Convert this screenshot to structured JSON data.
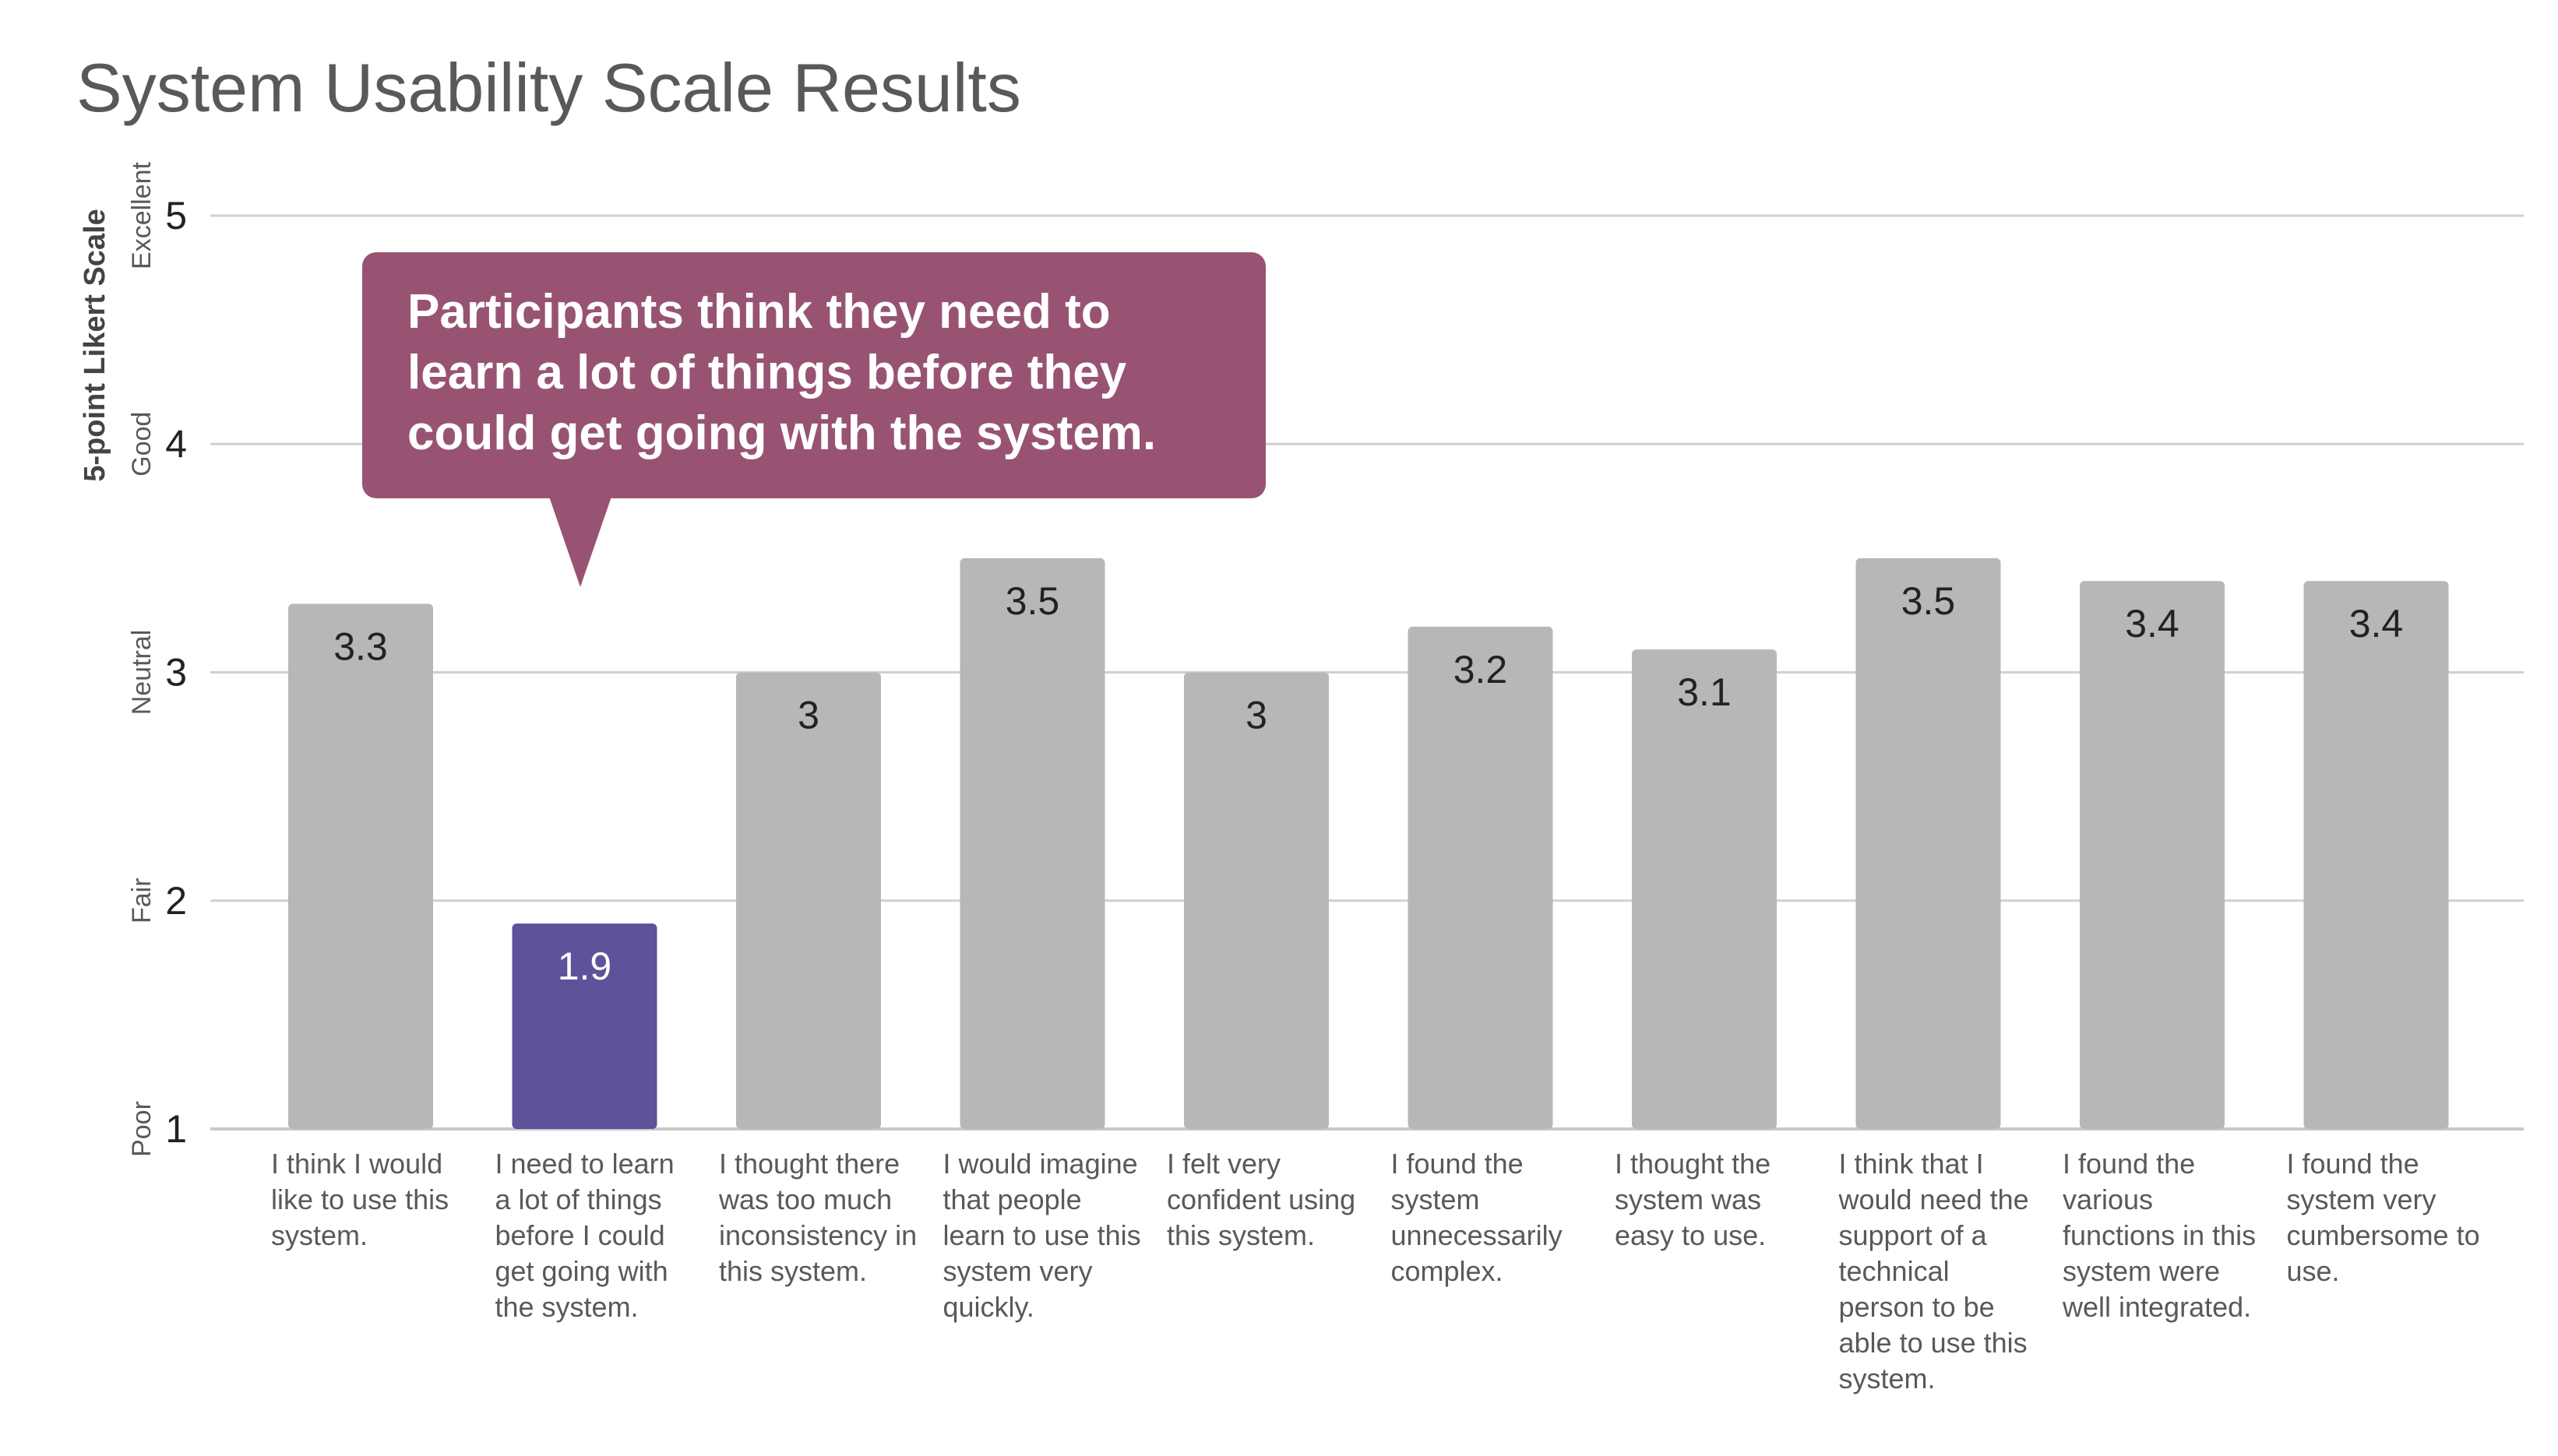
{
  "page": {
    "title": "System Usability Scale Results"
  },
  "chart_data": {
    "type": "bar",
    "title": "System Usability Scale Results",
    "xlabel": "",
    "ylabel": "5-point Likert Scale",
    "ylim": [
      1,
      5
    ],
    "yticks": [
      1,
      2,
      3,
      4,
      5
    ],
    "ytick_text_labels": [
      "Poor",
      "Fair",
      "Neutral",
      "Good",
      "Excellent"
    ],
    "grid": true,
    "categories": [
      "I think I would like to use this system.",
      "I need to learn a lot of things before I could get going with the system.",
      "I thought there was too much inconsistency in this system.",
      "I would imagine that people learn to use this system very quickly.",
      "I felt very confident using this system.",
      "I found the system unnecessarily complex.",
      "I thought the system was easy to use.",
      "I think that I would need the support of a technical person to be able to use this system.",
      "I found the various functions in this system were well integrated.",
      "I found the system very cumbersome to use."
    ],
    "values": [
      3.3,
      1.9,
      3,
      3.5,
      3,
      3.2,
      3.1,
      3.5,
      3.4,
      3.4
    ],
    "data_labels": [
      "3.3",
      "1.9",
      "3",
      "3.5",
      "3",
      "3.2",
      "3.1",
      "3.5",
      "3.4",
      "3.4"
    ],
    "highlight_index": 1,
    "colors": {
      "default_bar": "#b7b7b7",
      "highlight_bar": "#5e529b",
      "grid": "#d0d0d0",
      "callout": "#985373"
    },
    "annotations": [
      {
        "text": "Participants think they need to learn a lot of things before they could get going with the system.",
        "target_index": 1
      }
    ]
  }
}
